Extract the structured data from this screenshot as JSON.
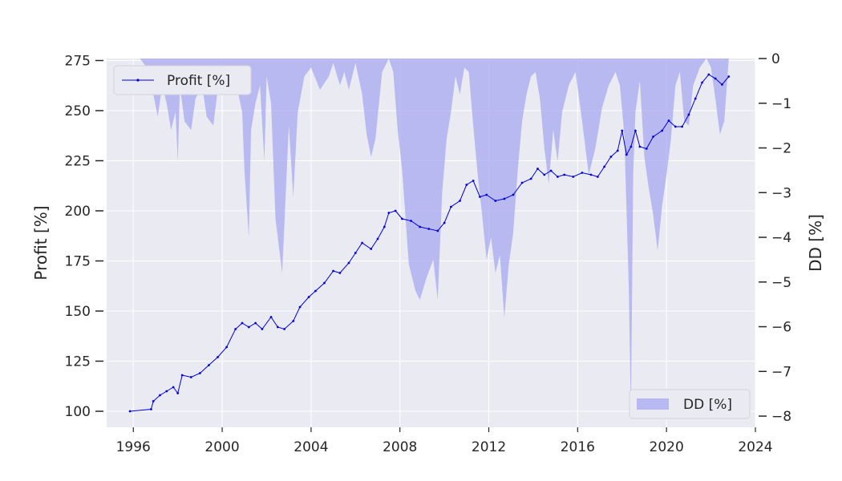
{
  "chart_data": {
    "type": "line",
    "title": "",
    "xlabel": "",
    "ylabel": "Profit [%]",
    "y2label": "DD [%]",
    "xlim": [
      1994.8,
      2024.0
    ],
    "ylim": [
      92,
      276
    ],
    "y2lim": [
      -8.25,
      0.0
    ],
    "xticks": [
      1996,
      2000,
      2004,
      2008,
      2012,
      2016,
      2020,
      2024
    ],
    "yticks": [
      100,
      125,
      150,
      175,
      200,
      225,
      250,
      275
    ],
    "y2ticks": [
      0,
      -1,
      -2,
      -3,
      -4,
      -5,
      -6,
      -7,
      -8
    ],
    "grid": true,
    "legend_profit": {
      "label": "Profit [%]",
      "placement": "top-left"
    },
    "legend_dd": {
      "label": "DD [%]",
      "placement": "bottom-right"
    },
    "colors": {
      "profit": "#0000dd",
      "dd": "#a8a8f0",
      "background": "#eaeaf2",
      "grid": "#ffffff"
    },
    "series": [
      {
        "name": "Profit [%]",
        "axis": "left",
        "x": [
          1995.85,
          1996.8,
          1996.9,
          1997.2,
          1997.5,
          1997.8,
          1998.0,
          1998.2,
          1998.6,
          1999.0,
          1999.4,
          1999.8,
          2000.2,
          2000.6,
          2000.9,
          2001.2,
          2001.5,
          2001.8,
          2002.2,
          2002.5,
          2002.8,
          2003.2,
          2003.5,
          2003.9,
          2004.2,
          2004.6,
          2005.0,
          2005.3,
          2005.7,
          2006.0,
          2006.3,
          2006.7,
          2007.0,
          2007.3,
          2007.5,
          2007.8,
          2008.1,
          2008.5,
          2008.9,
          2009.3,
          2009.7,
          2010.0,
          2010.3,
          2010.7,
          2011.0,
          2011.3,
          2011.6,
          2011.9,
          2012.3,
          2012.7,
          2013.1,
          2013.5,
          2013.9,
          2014.2,
          2014.5,
          2014.8,
          2015.1,
          2015.4,
          2015.8,
          2016.2,
          2016.6,
          2016.9,
          2017.2,
          2017.5,
          2017.8,
          2018.0,
          2018.2,
          2018.4,
          2018.6,
          2018.8,
          2019.1,
          2019.4,
          2019.8,
          2020.1,
          2020.4,
          2020.7,
          2021.0,
          2021.3,
          2021.6,
          2021.9,
          2022.2,
          2022.5,
          2022.8
        ],
        "values": [
          100,
          101,
          105,
          108,
          110,
          112,
          109,
          118,
          117,
          119,
          123,
          127,
          132,
          141,
          144,
          142,
          144,
          141,
          147,
          142,
          141,
          145,
          152,
          157,
          160,
          164,
          170,
          169,
          174,
          179,
          184,
          181,
          186,
          192,
          199,
          200,
          196,
          195,
          192,
          191,
          190,
          194,
          202,
          205,
          213,
          215,
          207,
          208,
          205,
          206,
          208,
          214,
          216,
          221,
          218,
          220,
          217,
          218,
          217,
          219,
          218,
          217,
          222,
          227,
          230,
          240,
          228,
          232,
          240,
          232,
          231,
          237,
          240,
          245,
          242,
          242,
          248,
          256,
          264,
          268,
          266,
          263,
          267
        ]
      },
      {
        "name": "DD [%]",
        "axis": "right",
        "x": [
          1995.85,
          1996.3,
          1996.6,
          1996.7,
          1996.9,
          1997.1,
          1997.3,
          1997.5,
          1997.7,
          1997.9,
          1998.0,
          1998.1,
          1998.3,
          1998.6,
          1998.8,
          1999.1,
          1999.3,
          1999.6,
          1999.9,
          2000.2,
          2000.6,
          2000.9,
          2001.0,
          2001.2,
          2001.3,
          2001.5,
          2001.7,
          2001.9,
          2002.0,
          2002.2,
          2002.4,
          2002.7,
          2002.9,
          2003.0,
          2003.2,
          2003.4,
          2003.7,
          2004.0,
          2004.4,
          2004.8,
          2005.0,
          2005.3,
          2005.5,
          2005.7,
          2006.0,
          2006.3,
          2006.5,
          2006.7,
          2006.9,
          2007.2,
          2007.5,
          2007.7,
          2007.9,
          2008.1,
          2008.4,
          2008.7,
          2008.9,
          2009.2,
          2009.5,
          2009.7,
          2009.9,
          2010.1,
          2010.3,
          2010.5,
          2010.7,
          2010.9,
          2011.1,
          2011.3,
          2011.5,
          2011.7,
          2011.9,
          2012.1,
          2012.3,
          2012.5,
          2012.7,
          2012.9,
          2013.1,
          2013.3,
          2013.5,
          2013.7,
          2013.9,
          2014.1,
          2014.3,
          2014.5,
          2014.7,
          2014.9,
          2015.1,
          2015.3,
          2015.6,
          2015.9,
          2016.2,
          2016.5,
          2016.8,
          2017.1,
          2017.4,
          2017.7,
          2017.9,
          2018.1,
          2018.3,
          2018.4,
          2018.5,
          2018.6,
          2018.8,
          2019.0,
          2019.2,
          2019.4,
          2019.6,
          2019.8,
          2020.0,
          2020.2,
          2020.4,
          2020.6,
          2020.8,
          2021.0,
          2021.2,
          2021.5,
          2021.8,
          2022.0,
          2022.2,
          2022.4,
          2022.6,
          2022.8
        ],
        "values": [
          0,
          0,
          -0.2,
          -0.4,
          -0.8,
          -1.3,
          -0.6,
          -1.0,
          -1.6,
          -1.2,
          -2.3,
          -0.6,
          -1.4,
          -1.6,
          -0.9,
          -0.6,
          -1.3,
          -1.5,
          -0.3,
          -0.8,
          -0.5,
          -1.2,
          -2.5,
          -4.0,
          -1.6,
          -1.0,
          -0.6,
          -2.3,
          -0.4,
          -1.0,
          -3.6,
          -4.8,
          -2.6,
          -1.5,
          -3.1,
          -1.2,
          -0.4,
          -0.2,
          -0.7,
          -0.4,
          -0.1,
          -0.6,
          -0.3,
          -0.7,
          -0.1,
          -0.8,
          -1.7,
          -2.2,
          -1.8,
          -0.3,
          0,
          -0.3,
          -1.6,
          -2.5,
          -4.6,
          -5.2,
          -5.4,
          -4.9,
          -4.5,
          -5.4,
          -3.0,
          -1.8,
          -1.2,
          -0.4,
          -0.8,
          -0.2,
          -0.3,
          -1.5,
          -2.6,
          -3.5,
          -4.5,
          -4.0,
          -4.8,
          -4.4,
          -5.8,
          -4.6,
          -3.9,
          -2.5,
          -1.4,
          -0.8,
          -0.4,
          -0.3,
          -0.9,
          -2.0,
          -2.8,
          -1.6,
          -2.3,
          -1.2,
          -0.6,
          -0.3,
          -1.4,
          -2.6,
          -2.0,
          -1.1,
          -0.6,
          -0.3,
          -0.6,
          -1.7,
          -5.1,
          -8.0,
          -2.6,
          -1.2,
          -0.5,
          -2.2,
          -2.9,
          -3.5,
          -4.3,
          -3.3,
          -2.6,
          -1.8,
          -0.6,
          -0.3,
          -1.4,
          -1.5,
          -0.6,
          -0.2,
          0,
          -0.2,
          -0.9,
          -1.7,
          -1.4,
          0
        ]
      }
    ]
  }
}
